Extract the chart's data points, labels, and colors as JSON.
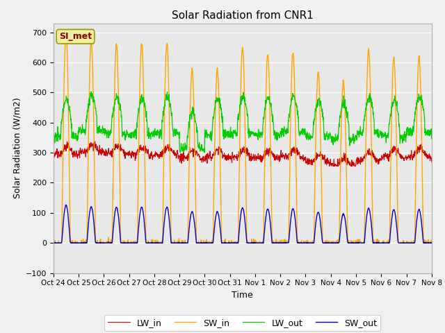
{
  "title": "Solar Radiation from CNR1",
  "xlabel": "Time",
  "ylabel": "Solar Radiation (W/m2)",
  "ylim": [
    -100,
    730
  ],
  "yticks": [
    -100,
    0,
    100,
    200,
    300,
    400,
    500,
    600,
    700
  ],
  "plot_bg_color": "#e8e8e8",
  "fig_bg_color": "#f0f0f0",
  "series_colors": {
    "LW_in": "#cc0000",
    "SW_in": "#ffa500",
    "LW_out": "#00cc00",
    "SW_out": "#0000cc"
  },
  "station_label": "SI_met",
  "n_days": 15,
  "xtick_labels": [
    "Oct 24",
    "Oct 25",
    "Oct 26",
    "Oct 27",
    "Oct 28",
    "Oct 29",
    "Oct 30",
    "Oct 31",
    "Nov 1",
    "Nov 2",
    "Nov 3",
    "Nov 4",
    "Nov 5",
    "Nov 6",
    "Nov 7",
    "Nov 8"
  ],
  "sw_in_peaks": [
    700,
    670,
    660,
    665,
    665,
    580,
    575,
    650,
    625,
    630,
    565,
    535,
    640,
    615,
    615
  ],
  "lw_in_base": 290,
  "lw_out_base": 375
}
